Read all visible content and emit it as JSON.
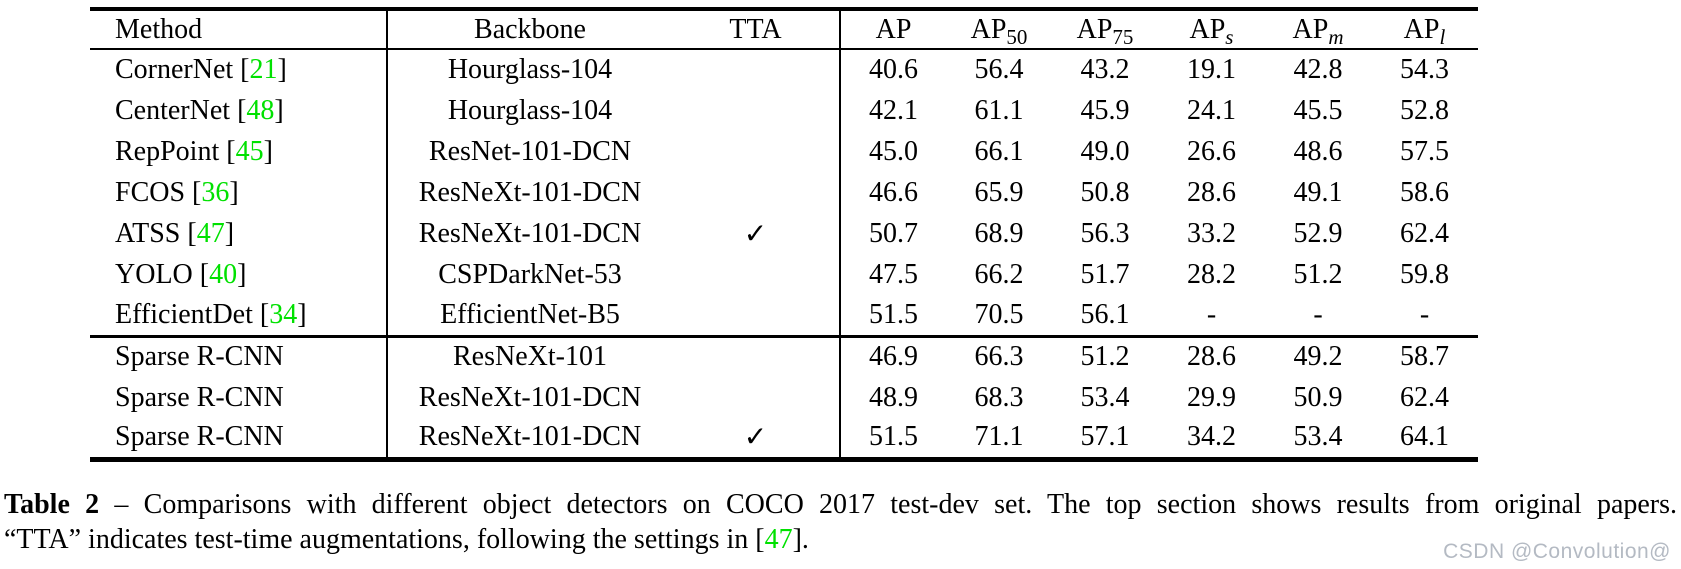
{
  "colors": {
    "background": "#ffffff",
    "text": "#000000",
    "citation_green": "#00e100",
    "watermark_gray": "#b4bac3"
  },
  "table": {
    "checkmark_glyph": "✓",
    "headers": [
      {
        "key": "method",
        "text": "Method",
        "sub": null,
        "italic_sub": false
      },
      {
        "key": "backbone",
        "text": "Backbone",
        "sub": null,
        "italic_sub": false
      },
      {
        "key": "tta",
        "text": "TTA",
        "sub": null,
        "italic_sub": false
      },
      {
        "key": "ap",
        "text": "AP",
        "sub": null,
        "italic_sub": false
      },
      {
        "key": "ap50",
        "text": "AP",
        "sub": "50",
        "italic_sub": false
      },
      {
        "key": "ap75",
        "text": "AP",
        "sub": "75",
        "italic_sub": false
      },
      {
        "key": "aps",
        "text": "AP",
        "sub": "s",
        "italic_sub": true
      },
      {
        "key": "apm",
        "text": "AP",
        "sub": "m",
        "italic_sub": true
      },
      {
        "key": "apl",
        "text": "AP",
        "sub": "l",
        "italic_sub": true
      }
    ],
    "rows": [
      {
        "method": "CornerNet",
        "cite": "21",
        "backbone": "Hourglass-104",
        "tta": false,
        "ap": "40.6",
        "ap50": "56.4",
        "ap75": "43.2",
        "aps": "19.1",
        "apm": "42.8",
        "apl": "54.3",
        "section_end": false
      },
      {
        "method": "CenterNet",
        "cite": "48",
        "backbone": "Hourglass-104",
        "tta": false,
        "ap": "42.1",
        "ap50": "61.1",
        "ap75": "45.9",
        "aps": "24.1",
        "apm": "45.5",
        "apl": "52.8",
        "section_end": false
      },
      {
        "method": "RepPoint",
        "cite": "45",
        "backbone": "ResNet-101-DCN",
        "tta": false,
        "ap": "45.0",
        "ap50": "66.1",
        "ap75": "49.0",
        "aps": "26.6",
        "apm": "48.6",
        "apl": "57.5",
        "section_end": false
      },
      {
        "method": "FCOS",
        "cite": "36",
        "backbone": "ResNeXt-101-DCN",
        "tta": false,
        "ap": "46.6",
        "ap50": "65.9",
        "ap75": "50.8",
        "aps": "28.6",
        "apm": "49.1",
        "apl": "58.6",
        "section_end": false
      },
      {
        "method": "ATSS",
        "cite": "47",
        "backbone": "ResNeXt-101-DCN",
        "tta": true,
        "ap": "50.7",
        "ap50": "68.9",
        "ap75": "56.3",
        "aps": "33.2",
        "apm": "52.9",
        "apl": "62.4",
        "section_end": false
      },
      {
        "method": "YOLO",
        "cite": "40",
        "backbone": "CSPDarkNet-53",
        "tta": false,
        "ap": "47.5",
        "ap50": "66.2",
        "ap75": "51.7",
        "aps": "28.2",
        "apm": "51.2",
        "apl": "59.8",
        "section_end": false
      },
      {
        "method": "EfficientDet",
        "cite": "34",
        "backbone": "EfficientNet-B5",
        "tta": false,
        "ap": "51.5",
        "ap50": "70.5",
        "ap75": "56.1",
        "aps": "-",
        "apm": "-",
        "apl": "-",
        "section_end": true
      },
      {
        "method": "Sparse R-CNN",
        "cite": null,
        "backbone": "ResNeXt-101",
        "tta": false,
        "ap": "46.9",
        "ap50": "66.3",
        "ap75": "51.2",
        "aps": "28.6",
        "apm": "49.2",
        "apl": "58.7",
        "section_end": false
      },
      {
        "method": "Sparse R-CNN",
        "cite": null,
        "backbone": "ResNeXt-101-DCN",
        "tta": false,
        "ap": "48.9",
        "ap50": "68.3",
        "ap75": "53.4",
        "aps": "29.9",
        "apm": "50.9",
        "apl": "62.4",
        "section_end": false
      },
      {
        "method": "Sparse R-CNN",
        "cite": null,
        "backbone": "ResNeXt-101-DCN",
        "tta": true,
        "ap": "51.5",
        "ap50": "71.1",
        "ap75": "57.1",
        "aps": "34.2",
        "apm": "53.4",
        "apl": "64.1",
        "section_end": false
      }
    ]
  },
  "caption": {
    "label": "Table 2",
    "dash": "–",
    "line1_rest": "Comparisons with different object detectors on COCO 2017 test-dev set. The top section shows results from original papers.",
    "line2_pre": "“TTA” indicates test-time augmentations, following the settings in [",
    "line2_cite": "47",
    "line2_post": "]."
  },
  "watermark": "CSDN @Convolution@"
}
